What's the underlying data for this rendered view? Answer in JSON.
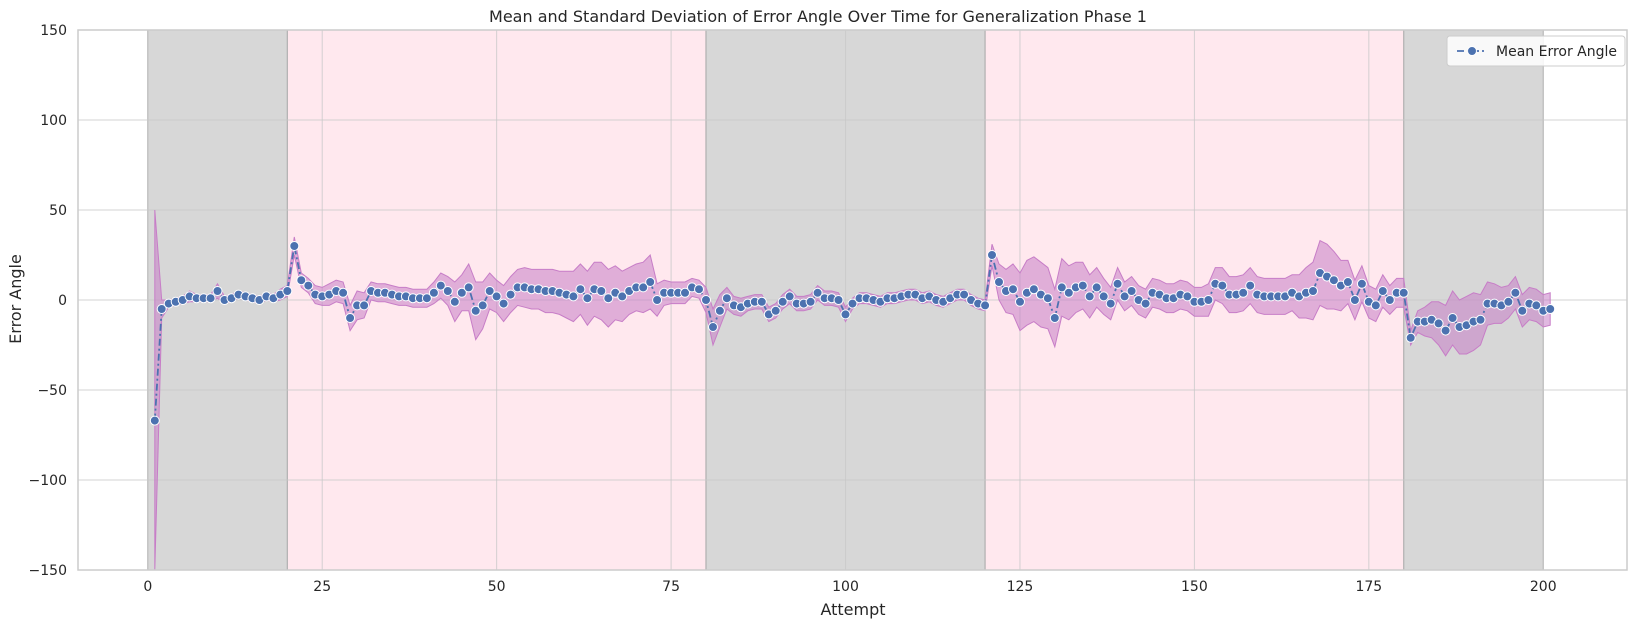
{
  "chart_data": {
    "type": "line",
    "title": "Mean and Standard Deviation of Error Angle Over Time for Generalization Phase 1",
    "xlabel": "Attempt",
    "ylabel": "Error Angle",
    "xlim": [
      -10,
      212
    ],
    "ylim": [
      -150,
      150
    ],
    "xticks": [
      0,
      25,
      50,
      75,
      100,
      125,
      150,
      175,
      200
    ],
    "yticks": [
      -150,
      -100,
      -50,
      0,
      50,
      100,
      150
    ],
    "grid": true,
    "legend_position": "top-right",
    "phase_bands": [
      {
        "start": 0,
        "end": 20,
        "color": "#d7d7d7"
      },
      {
        "start": 20,
        "end": 80,
        "color": "#ffe8ee"
      },
      {
        "start": 80,
        "end": 120,
        "color": "#d7d7d7"
      },
      {
        "start": 120,
        "end": 180,
        "color": "#ffe8ee"
      },
      {
        "start": 180,
        "end": 200,
        "color": "#d7d7d7"
      }
    ],
    "colors": {
      "line": "#4c72b0",
      "band": "#c77dc7",
      "gridline": "#c8c8c8",
      "frame": "#cccccc"
    },
    "series": [
      {
        "name": "Mean Error Angle",
        "marker": "circle",
        "linestyle": "dashdot",
        "x": [
          1,
          2,
          3,
          4,
          5,
          6,
          7,
          8,
          9,
          10,
          11,
          12,
          13,
          14,
          15,
          16,
          17,
          18,
          19,
          20,
          21,
          22,
          23,
          24,
          25,
          26,
          27,
          28,
          29,
          30,
          31,
          32,
          33,
          34,
          35,
          36,
          37,
          38,
          39,
          40,
          41,
          42,
          43,
          44,
          45,
          46,
          47,
          48,
          49,
          50,
          51,
          52,
          53,
          54,
          55,
          56,
          57,
          58,
          59,
          60,
          61,
          62,
          63,
          64,
          65,
          66,
          67,
          68,
          69,
          70,
          71,
          72,
          73,
          74,
          75,
          76,
          77,
          78,
          79,
          80,
          81,
          82,
          83,
          84,
          85,
          86,
          87,
          88,
          89,
          90,
          91,
          92,
          93,
          94,
          95,
          96,
          97,
          98,
          99,
          100,
          101,
          102,
          103,
          104,
          105,
          106,
          107,
          108,
          109,
          110,
          111,
          112,
          113,
          114,
          115,
          116,
          117,
          118,
          119,
          120,
          121,
          122,
          123,
          124,
          125,
          126,
          127,
          128,
          129,
          130,
          131,
          132,
          133,
          134,
          135,
          136,
          137,
          138,
          139,
          140,
          141,
          142,
          143,
          144,
          145,
          146,
          147,
          148,
          149,
          150,
          151,
          152,
          153,
          154,
          155,
          156,
          157,
          158,
          159,
          160,
          161,
          162,
          163,
          164,
          165,
          166,
          167,
          168,
          169,
          170,
          171,
          172,
          173,
          174,
          175,
          176,
          177,
          178,
          179,
          180,
          181,
          182,
          183,
          184,
          185,
          186,
          187,
          188,
          189,
          190,
          191,
          192,
          193,
          194,
          195,
          196,
          197,
          198,
          199,
          200,
          201
        ],
        "mean": [
          -67,
          -5,
          -2,
          -1,
          0,
          2,
          1,
          1,
          1,
          5,
          0,
          1,
          3,
          2,
          1,
          0,
          2,
          1,
          3,
          5,
          30,
          11,
          8,
          3,
          2,
          3,
          5,
          4,
          -10,
          -3,
          -3,
          5,
          4,
          4,
          3,
          2,
          2,
          1,
          1,
          1,
          4,
          8,
          5,
          -1,
          4,
          7,
          -6,
          -3,
          5,
          2,
          -2,
          3,
          7,
          7,
          6,
          6,
          5,
          5,
          4,
          3,
          2,
          6,
          1,
          6,
          5,
          1,
          4,
          2,
          5,
          7,
          7,
          10,
          0,
          4,
          4,
          4,
          4,
          7,
          6,
          0,
          -15,
          -6,
          1,
          -3,
          -4,
          -2,
          -1,
          -1,
          -8,
          -6,
          -1,
          2,
          -2,
          -2,
          -1,
          4,
          1,
          1,
          0,
          -8,
          -2,
          1,
          1,
          0,
          -1,
          1,
          1,
          2,
          3,
          3,
          1,
          2,
          0,
          -1,
          1,
          3,
          3,
          0,
          -2,
          -3,
          25,
          10,
          5,
          6,
          -1,
          4,
          6,
          3,
          1,
          -10,
          7,
          4,
          7,
          8,
          2,
          7,
          2,
          -2,
          9,
          2,
          5,
          0,
          -2,
          4,
          3,
          1,
          1,
          3,
          2,
          -1,
          -1,
          0,
          9,
          8,
          3,
          3,
          4,
          8,
          3,
          2,
          2,
          2,
          2,
          4,
          2,
          4,
          5,
          15,
          13,
          11,
          8,
          10,
          0,
          9,
          -1,
          -3,
          5,
          0,
          4,
          4,
          -21,
          -12,
          -12,
          -11,
          -13,
          -17,
          -10,
          -15,
          -14,
          -12,
          -11,
          -2,
          -2,
          -3,
          -1,
          4,
          -6,
          -2,
          -3,
          -6,
          -5
        ],
        "std": [
          117,
          5,
          2,
          2,
          2,
          3,
          2,
          2,
          2,
          4,
          2,
          2,
          2,
          2,
          2,
          2,
          2,
          2,
          3,
          3,
          5,
          4,
          4,
          5,
          5,
          6,
          6,
          6,
          7,
          8,
          7,
          5,
          5,
          5,
          5,
          5,
          5,
          5,
          5,
          5,
          6,
          7,
          8,
          11,
          10,
          13,
          16,
          13,
          10,
          9,
          10,
          10,
          10,
          11,
          11,
          11,
          12,
          12,
          12,
          13,
          14,
          14,
          15,
          15,
          16,
          16,
          15,
          14,
          13,
          13,
          14,
          15,
          9,
          7,
          6,
          6,
          6,
          5,
          5,
          7,
          10,
          9,
          6,
          5,
          5,
          4,
          4,
          4,
          4,
          4,
          4,
          4,
          4,
          4,
          4,
          4,
          4,
          4,
          4,
          4,
          3,
          3,
          3,
          3,
          3,
          3,
          3,
          3,
          3,
          3,
          3,
          3,
          3,
          3,
          3,
          3,
          3,
          3,
          3,
          3,
          6,
          10,
          12,
          14,
          16,
          18,
          18,
          18,
          17,
          16,
          16,
          15,
          14,
          13,
          12,
          11,
          10,
          9,
          9,
          8,
          8,
          8,
          8,
          8,
          8,
          8,
          8,
          8,
          8,
          8,
          8,
          9,
          9,
          10,
          10,
          10,
          10,
          10,
          10,
          10,
          10,
          10,
          10,
          10,
          12,
          14,
          16,
          18,
          18,
          16,
          14,
          12,
          11,
          10,
          9,
          9,
          9,
          8,
          8,
          8,
          4,
          6,
          8,
          10,
          12,
          14,
          15,
          15,
          16,
          16,
          14,
          12,
          11,
          10,
          9,
          9,
          9,
          9,
          9,
          9,
          9
        ]
      }
    ]
  }
}
